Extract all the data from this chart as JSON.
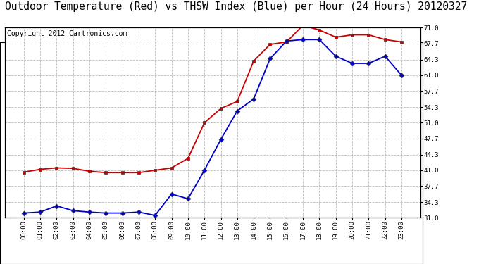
{
  "title": "Outdoor Temperature (Red) vs THSW Index (Blue) per Hour (24 Hours) 20120327",
  "copyright": "Copyright 2012 Cartronics.com",
  "x_labels": [
    "00:00",
    "01:00",
    "02:00",
    "03:00",
    "04:00",
    "05:00",
    "06:00",
    "07:00",
    "08:00",
    "09:00",
    "10:00",
    "11:00",
    "12:00",
    "13:00",
    "14:00",
    "15:00",
    "16:00",
    "17:00",
    "18:00",
    "19:00",
    "20:00",
    "21:00",
    "22:00",
    "23:00"
  ],
  "red_data": [
    40.6,
    41.2,
    41.5,
    41.4,
    40.8,
    40.5,
    40.5,
    40.5,
    41.0,
    41.5,
    43.5,
    51.0,
    54.0,
    55.5,
    64.0,
    67.5,
    68.0,
    71.5,
    70.5,
    69.0,
    69.5,
    69.5,
    68.5,
    68.0
  ],
  "blue_data": [
    32.0,
    32.2,
    33.5,
    32.5,
    32.2,
    32.0,
    32.0,
    32.2,
    31.5,
    36.0,
    35.0,
    41.0,
    47.5,
    53.5,
    56.0,
    64.5,
    68.2,
    68.5,
    68.5,
    65.0,
    63.5,
    63.5,
    65.0,
    61.0
  ],
  "ylim": [
    31.0,
    71.0
  ],
  "yticks": [
    31.0,
    34.3,
    37.7,
    41.0,
    44.3,
    47.7,
    51.0,
    54.3,
    57.7,
    61.0,
    64.3,
    67.7,
    71.0
  ],
  "bg_color": "#ffffff",
  "plot_bg_color": "#ffffff",
  "grid_color": "#bbbbbb",
  "red_color": "#cc0000",
  "blue_color": "#0000cc",
  "title_fontsize": 10.5,
  "copyright_fontsize": 7.0
}
